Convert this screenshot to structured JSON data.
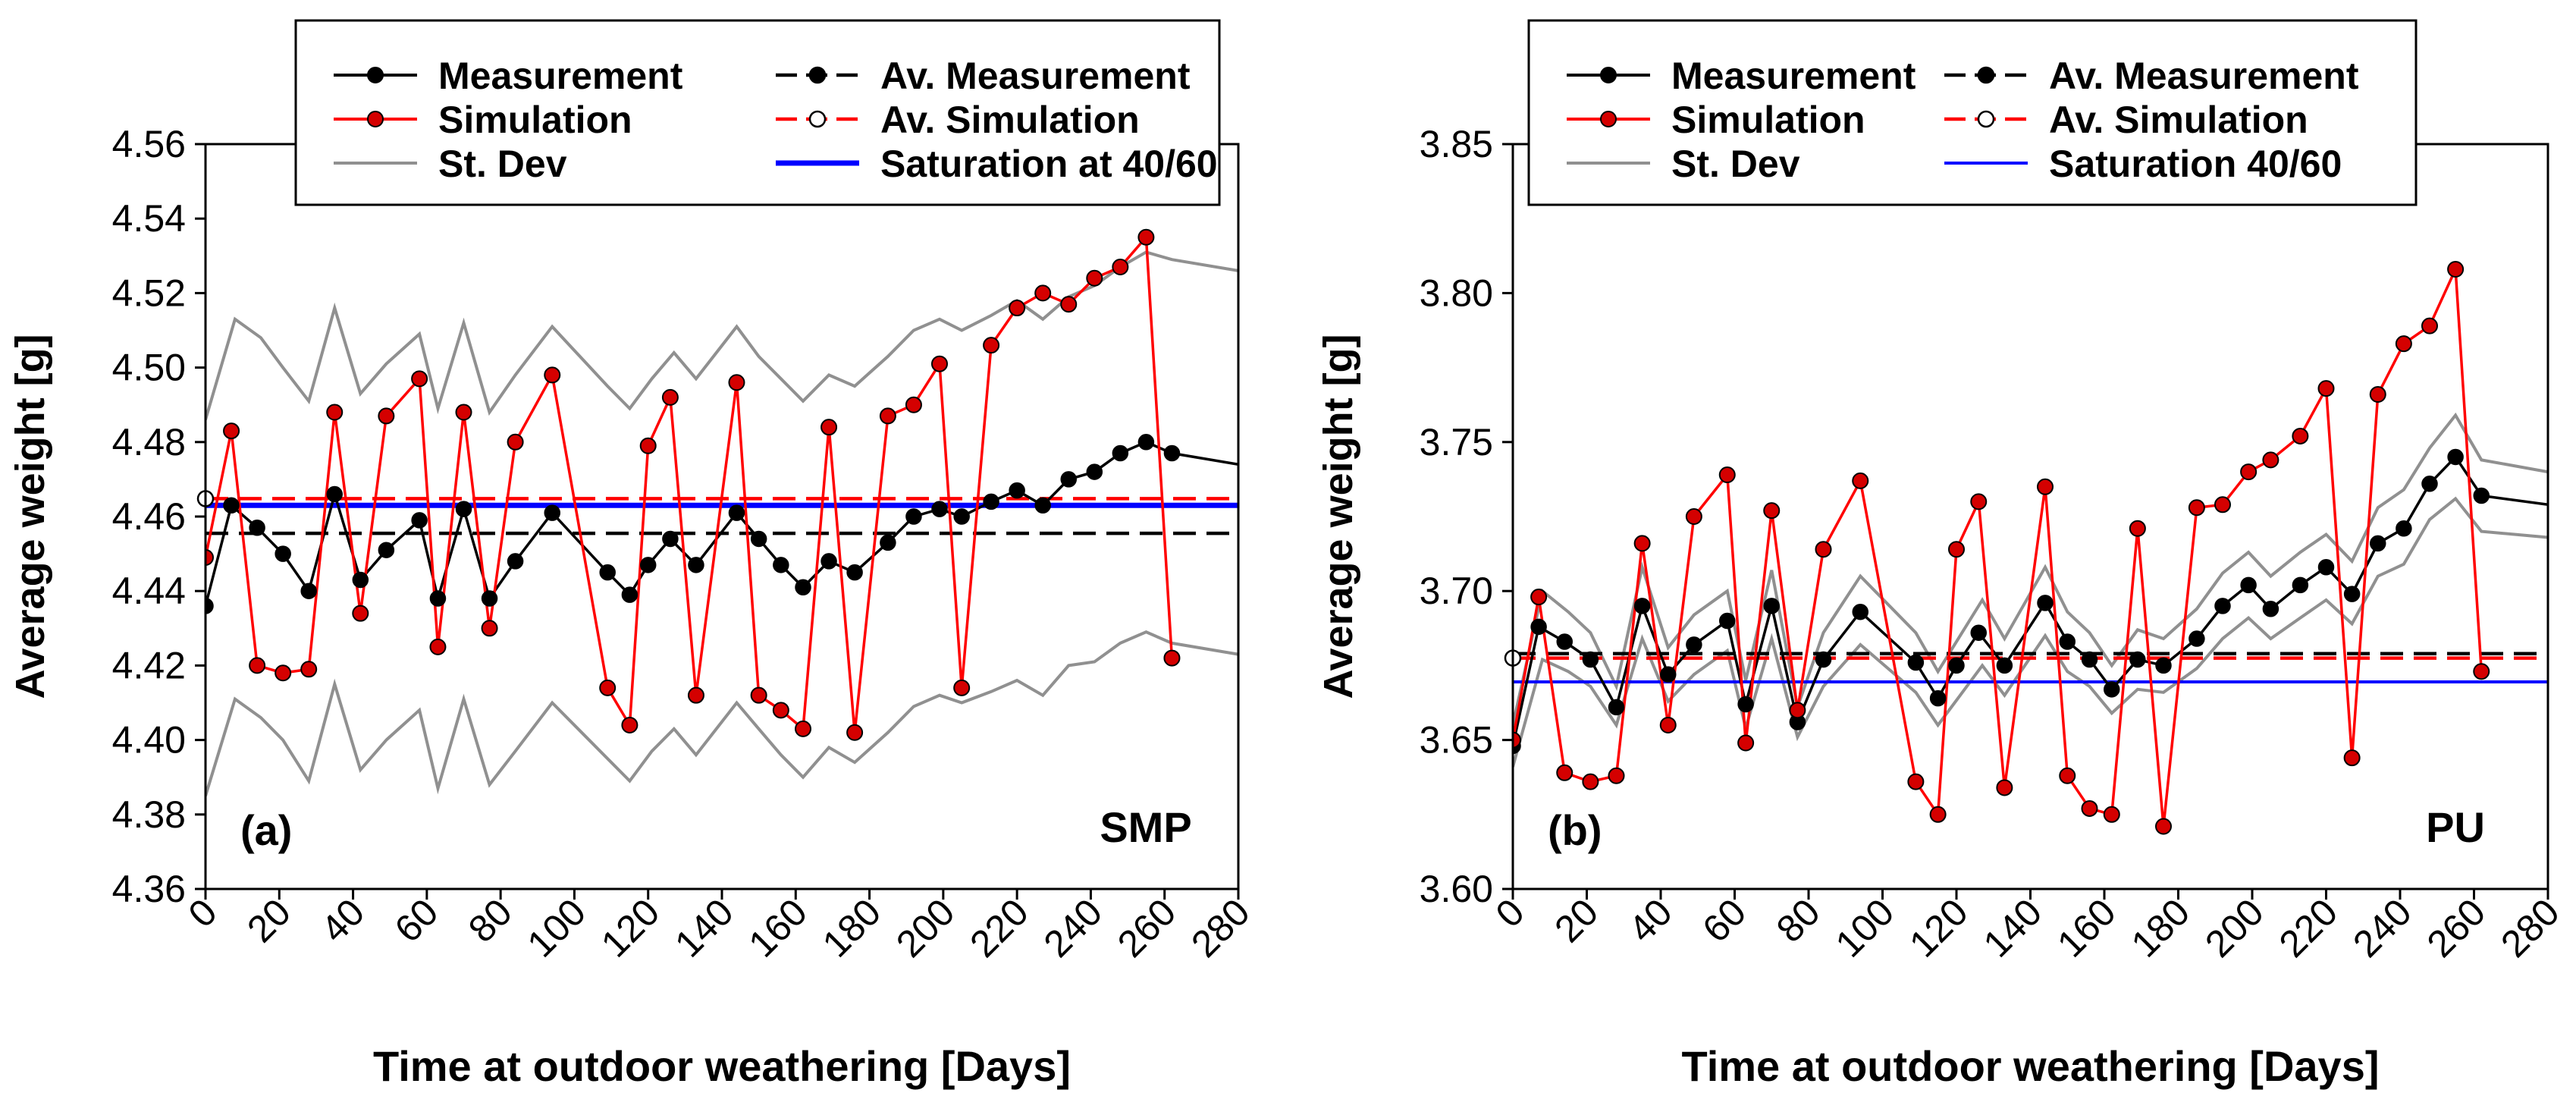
{
  "chart_data": [
    {
      "type": "line",
      "panel_label": "(a)",
      "material_label": "SMP",
      "xlabel": "Time at outdoor weathering  [Days]",
      "ylabel": "Average weight [g]",
      "xlim": [
        0,
        280
      ],
      "ylim": [
        4.36,
        4.56
      ],
      "xticks": [
        0,
        20,
        40,
        60,
        80,
        100,
        120,
        140,
        160,
        180,
        200,
        220,
        240,
        260,
        280
      ],
      "yticks": [
        4.36,
        4.38,
        4.4,
        4.42,
        4.44,
        4.46,
        4.48,
        4.5,
        4.52,
        4.54,
        4.56
      ],
      "ytick_decimals": 2,
      "grid": false,
      "legend_position": "top-center",
      "legend": [
        {
          "label": "Measurement",
          "series": "measurement"
        },
        {
          "label": "Av. Measurement",
          "series": "av_measurement"
        },
        {
          "label": "Simulation",
          "series": "simulation"
        },
        {
          "label": "Av. Simulation",
          "series": "av_simulation"
        },
        {
          "label": "St. Dev",
          "series": "st_dev"
        },
        {
          "label": "Saturation at 40/60",
          "series": "saturation"
        }
      ],
      "colors": {
        "measurement": "#000000",
        "simulation": "#ff0000",
        "simulation_marker": "#d40000",
        "st_dev": "#909090",
        "saturation": "#0000ff"
      },
      "series": {
        "measurement": {
          "x": [
            0,
            7,
            14,
            21,
            28,
            35,
            42,
            49,
            58,
            63,
            70,
            77,
            84,
            94,
            109,
            115,
            120,
            126,
            133,
            144,
            150,
            156,
            162,
            169,
            176,
            185,
            192,
            199,
            205,
            213,
            220,
            227,
            234,
            241,
            248,
            255,
            262,
            280
          ],
          "y": [
            4.436,
            4.463,
            4.457,
            4.45,
            4.44,
            4.466,
            4.443,
            4.451,
            4.459,
            4.438,
            4.462,
            4.438,
            4.448,
            4.461,
            4.445,
            4.439,
            4.447,
            4.454,
            4.447,
            4.461,
            4.454,
            4.447,
            4.441,
            4.448,
            4.445,
            4.453,
            4.46,
            4.462,
            4.46,
            4.464,
            4.467,
            4.463,
            4.47,
            4.472,
            4.477,
            4.48,
            4.477,
            4.474
          ]
        },
        "simulation": {
          "x": [
            0,
            7,
            14,
            21,
            28,
            35,
            42,
            49,
            58,
            63,
            70,
            77,
            84,
            94,
            109,
            115,
            120,
            126,
            133,
            144,
            150,
            156,
            162,
            169,
            176,
            185,
            192,
            199,
            205,
            213,
            220,
            227,
            234,
            241,
            248,
            255,
            262
          ],
          "y": [
            4.449,
            4.483,
            4.42,
            4.418,
            4.419,
            4.488,
            4.434,
            4.487,
            4.497,
            4.425,
            4.488,
            4.43,
            4.48,
            4.498,
            4.414,
            4.404,
            4.479,
            4.492,
            4.412,
            4.496,
            4.412,
            4.408,
            4.403,
            4.484,
            4.402,
            4.487,
            4.49,
            4.501,
            4.414,
            4.506,
            4.516,
            4.52,
            4.517,
            4.524,
            4.527,
            4.535,
            4.422
          ]
        },
        "st_dev_upper": {
          "x": [
            0,
            8,
            15,
            21,
            28,
            35,
            42,
            49,
            58,
            63,
            70,
            77,
            84,
            94,
            109,
            115,
            121,
            127,
            133,
            144,
            150,
            156,
            162,
            169,
            176,
            185,
            192,
            199,
            205,
            213,
            220,
            227,
            234,
            241,
            248,
            255,
            262,
            280
          ],
          "y": [
            4.486,
            4.513,
            4.508,
            4.5,
            4.491,
            4.516,
            4.493,
            4.501,
            4.509,
            4.489,
            4.512,
            4.488,
            4.498,
            4.511,
            4.495,
            4.489,
            4.497,
            4.504,
            4.497,
            4.511,
            4.503,
            4.497,
            4.491,
            4.498,
            4.495,
            4.503,
            4.51,
            4.513,
            4.51,
            4.514,
            4.518,
            4.513,
            4.519,
            4.522,
            4.527,
            4.531,
            4.529,
            4.526
          ]
        },
        "st_dev_lower": {
          "x": [
            0,
            8,
            15,
            21,
            28,
            35,
            42,
            49,
            58,
            63,
            70,
            77,
            84,
            94,
            109,
            115,
            121,
            127,
            133,
            144,
            150,
            156,
            162,
            169,
            176,
            185,
            192,
            199,
            205,
            213,
            220,
            227,
            234,
            241,
            248,
            255,
            262,
            280
          ],
          "y": [
            4.385,
            4.411,
            4.406,
            4.4,
            4.389,
            4.415,
            4.392,
            4.4,
            4.408,
            4.387,
            4.411,
            4.388,
            4.397,
            4.41,
            4.395,
            4.389,
            4.397,
            4.403,
            4.396,
            4.41,
            4.403,
            4.396,
            4.39,
            4.398,
            4.394,
            4.402,
            4.409,
            4.412,
            4.41,
            4.413,
            4.416,
            4.412,
            4.42,
            4.421,
            4.426,
            4.429,
            4.426,
            4.423
          ]
        },
        "av_measurement": {
          "value": 4.4555
        },
        "av_simulation": {
          "value": 4.4648
        },
        "saturation": {
          "value": 4.463
        },
        "av_simulation_marker": {
          "x": 0,
          "y": 4.4648
        }
      }
    },
    {
      "type": "line",
      "panel_label": "(b)",
      "material_label": "PU",
      "xlabel": "Time at outdoor weathering [Days]",
      "ylabel": "Average weight [g]",
      "xlim": [
        0,
        280
      ],
      "ylim": [
        3.6,
        3.85
      ],
      "xticks": [
        0,
        20,
        40,
        60,
        80,
        100,
        120,
        140,
        160,
        180,
        200,
        220,
        240,
        260,
        280
      ],
      "yticks": [
        3.6,
        3.65,
        3.7,
        3.75,
        3.8,
        3.85
      ],
      "ytick_decimals": 2,
      "grid": false,
      "legend_position": "top-center",
      "legend": [
        {
          "label": "Measurement",
          "series": "measurement"
        },
        {
          "label": "Av. Measurement",
          "series": "av_measurement"
        },
        {
          "label": "Simulation",
          "series": "simulation"
        },
        {
          "label": "Av. Simulation",
          "series": "av_simulation"
        },
        {
          "label": "St. Dev",
          "series": "st_dev"
        },
        {
          "label": "Saturation 40/60",
          "series": "saturation"
        }
      ],
      "colors": {
        "measurement": "#000000",
        "simulation": "#ff0000",
        "simulation_marker": "#d40000",
        "st_dev": "#909090",
        "saturation": "#0000ff"
      },
      "series": {
        "measurement": {
          "x": [
            0,
            7,
            14,
            21,
            28,
            35,
            42,
            49,
            58,
            63,
            70,
            77,
            84,
            94,
            109,
            115,
            120,
            126,
            133,
            144,
            150,
            156,
            162,
            169,
            176,
            185,
            192,
            199,
            205,
            213,
            220,
            227,
            234,
            241,
            248,
            255,
            262,
            280
          ],
          "y": [
            3.648,
            3.688,
            3.683,
            3.677,
            3.661,
            3.695,
            3.672,
            3.682,
            3.69,
            3.662,
            3.695,
            3.656,
            3.677,
            3.693,
            3.676,
            3.664,
            3.675,
            3.686,
            3.675,
            3.696,
            3.683,
            3.677,
            3.667,
            3.677,
            3.675,
            3.684,
            3.695,
            3.702,
            3.694,
            3.702,
            3.708,
            3.699,
            3.716,
            3.721,
            3.736,
            3.745,
            3.732,
            3.729
          ]
        },
        "simulation": {
          "x": [
            0,
            7,
            14,
            21,
            28,
            35,
            42,
            49,
            58,
            63,
            70,
            77,
            84,
            94,
            109,
            115,
            120,
            126,
            133,
            144,
            150,
            156,
            162,
            169,
            176,
            185,
            192,
            199,
            205,
            213,
            220,
            227,
            234,
            241,
            248,
            255,
            262
          ],
          "y": [
            3.65,
            3.698,
            3.639,
            3.636,
            3.638,
            3.716,
            3.655,
            3.725,
            3.739,
            3.649,
            3.727,
            3.66,
            3.714,
            3.737,
            3.636,
            3.625,
            3.714,
            3.73,
            3.634,
            3.735,
            3.638,
            3.627,
            3.625,
            3.721,
            3.621,
            3.728,
            3.729,
            3.74,
            3.744,
            3.752,
            3.768,
            3.644,
            3.766,
            3.783,
            3.789,
            3.808,
            3.673
          ]
        },
        "st_dev_upper": {
          "x": [
            0,
            8,
            15,
            21,
            28,
            35,
            42,
            49,
            58,
            63,
            70,
            77,
            84,
            94,
            109,
            115,
            121,
            127,
            133,
            144,
            150,
            156,
            162,
            169,
            176,
            185,
            192,
            199,
            205,
            213,
            220,
            227,
            234,
            241,
            248,
            255,
            262,
            280
          ],
          "y": [
            3.655,
            3.7,
            3.693,
            3.686,
            3.668,
            3.708,
            3.681,
            3.692,
            3.7,
            3.67,
            3.707,
            3.661,
            3.686,
            3.705,
            3.686,
            3.673,
            3.685,
            3.697,
            3.684,
            3.708,
            3.693,
            3.686,
            3.675,
            3.687,
            3.684,
            3.694,
            3.706,
            3.713,
            3.705,
            3.713,
            3.719,
            3.71,
            3.728,
            3.734,
            3.748,
            3.759,
            3.744,
            3.74
          ]
        },
        "st_dev_lower": {
          "x": [
            0,
            8,
            15,
            21,
            28,
            35,
            42,
            49,
            58,
            63,
            70,
            77,
            84,
            94,
            109,
            115,
            121,
            127,
            133,
            144,
            150,
            156,
            162,
            169,
            176,
            185,
            192,
            199,
            205,
            213,
            220,
            227,
            234,
            241,
            248,
            255,
            262,
            280
          ],
          "y": [
            3.641,
            3.677,
            3.673,
            3.668,
            3.655,
            3.684,
            3.663,
            3.672,
            3.68,
            3.654,
            3.684,
            3.651,
            3.668,
            3.682,
            3.666,
            3.655,
            3.665,
            3.675,
            3.665,
            3.685,
            3.673,
            3.668,
            3.659,
            3.667,
            3.666,
            3.674,
            3.684,
            3.691,
            3.684,
            3.691,
            3.697,
            3.689,
            3.705,
            3.709,
            3.724,
            3.731,
            3.72,
            3.718
          ]
        },
        "av_measurement": {
          "value": 3.679
        },
        "av_simulation": {
          "value": 3.6775
        },
        "saturation": {
          "value": 3.6695
        },
        "av_simulation_marker": {
          "x": 0,
          "y": 3.6775
        }
      }
    }
  ]
}
